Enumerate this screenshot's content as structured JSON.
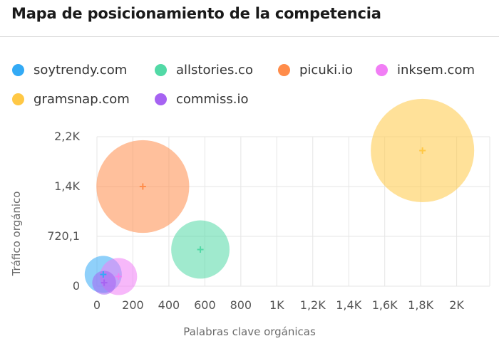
{
  "header": {
    "title": "Mapa de posicionamiento de la competencia"
  },
  "chart_data": {
    "type": "scatter",
    "title": "Mapa de posicionamiento de la competencia",
    "xlabel": "Palabras clave orgánicas",
    "ylabel": "Tráfico orgánico",
    "xlim": [
      0,
      2180
    ],
    "ylim": [
      0,
      2160
    ],
    "x_ticks": [
      {
        "value": 0,
        "label": "0"
      },
      {
        "value": 200,
        "label": "200"
      },
      {
        "value": 400,
        "label": "400"
      },
      {
        "value": 600,
        "label": "600"
      },
      {
        "value": 800,
        "label": "800"
      },
      {
        "value": 1000,
        "label": "1K"
      },
      {
        "value": 1200,
        "label": "1,2K"
      },
      {
        "value": 1400,
        "label": "1,4K"
      },
      {
        "value": 1600,
        "label": "1,6K"
      },
      {
        "value": 1800,
        "label": "1,8K"
      },
      {
        "value": 2000,
        "label": "2K"
      }
    ],
    "y_ticks": [
      {
        "value": 0,
        "label": "0"
      },
      {
        "value": 720.1,
        "label": "720,1"
      },
      {
        "value": 1440,
        "label": "1,4K"
      },
      {
        "value": 2160,
        "label": "2,2K"
      }
    ],
    "series": [
      {
        "name": "soytrendy.com",
        "color": "#33aaf5",
        "x": 35,
        "y": 170,
        "size": 1.4
      },
      {
        "name": "allstories.co",
        "color": "#52d9a6",
        "x": 575,
        "y": 530,
        "size": 2.2
      },
      {
        "name": "picuki.io",
        "color": "#ff8c4a",
        "x": 255,
        "y": 1440,
        "size": 3.5
      },
      {
        "name": "inksem.com",
        "color": "#f17ef5",
        "x": 120,
        "y": 140,
        "size": 1.4
      },
      {
        "name": "gramsnap.com",
        "color": "#ffc845",
        "x": 1810,
        "y": 1960,
        "size": 3.9
      },
      {
        "name": "commiss.io",
        "color": "#a663f2",
        "x": 40,
        "y": 50,
        "size": 0.9
      }
    ]
  }
}
